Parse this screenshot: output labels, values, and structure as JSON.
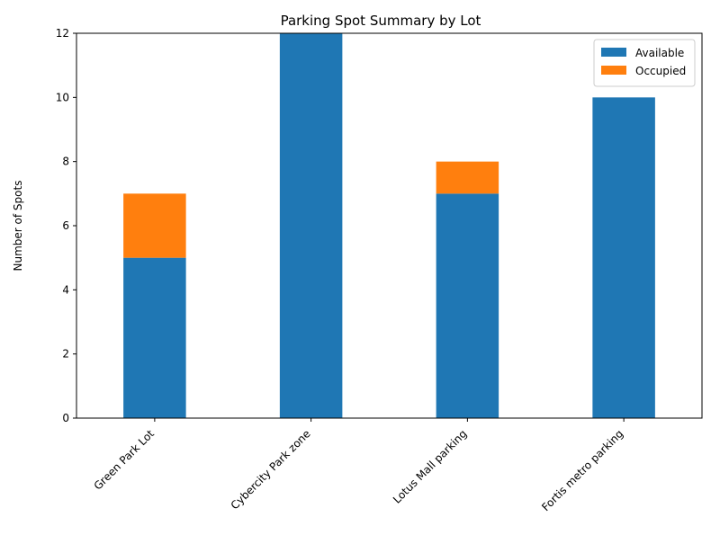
{
  "chart_data": {
    "type": "bar",
    "stacked": true,
    "title": "Parking Spot Summary by Lot",
    "xlabel": "",
    "ylabel": "Number of Spots",
    "categories": [
      "Green Park Lot",
      "Cybercity Park zone",
      "Lotus Mall parking",
      "Fortis metro parking"
    ],
    "series": [
      {
        "name": "Available",
        "values": [
          5,
          12,
          7,
          10
        ],
        "color": "#1f77b4"
      },
      {
        "name": "Occupied",
        "values": [
          2,
          0,
          1,
          0
        ],
        "color": "#ff7f0e"
      }
    ],
    "ylim": [
      0,
      12
    ],
    "yticks": [
      0,
      2,
      4,
      6,
      8,
      10,
      12
    ],
    "grid": false,
    "legend_position": "top-right"
  }
}
